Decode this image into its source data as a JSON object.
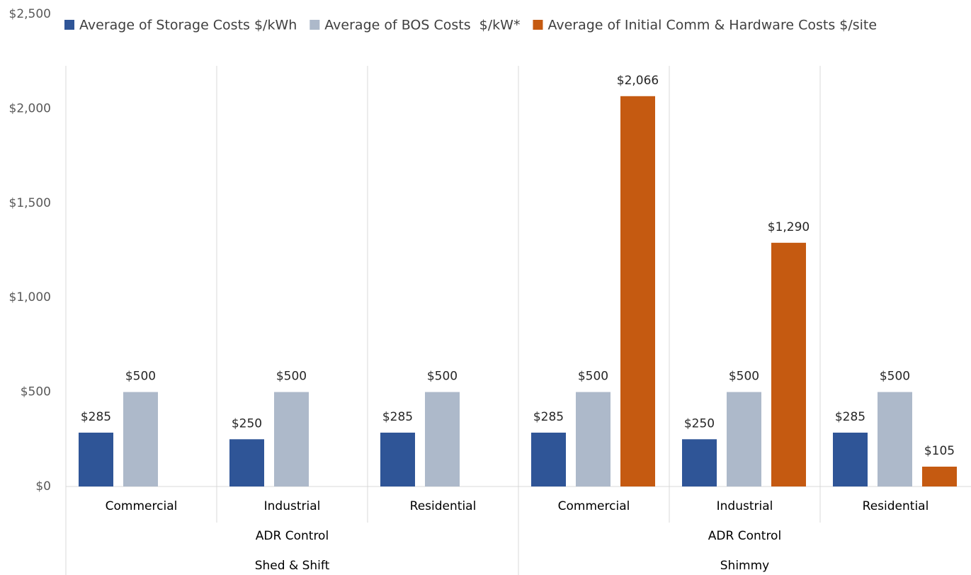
{
  "chart_data": {
    "type": "bar",
    "categories": [
      "Commercial",
      "Industrial",
      "Residential",
      "Commercial",
      "Industrial",
      "Residential"
    ],
    "subgroups": [
      "ADR Control",
      "ADR Control"
    ],
    "groups": [
      "Shed & Shift",
      "Shimmy"
    ],
    "series": [
      {
        "name": "Average of Storage Costs $/kWh",
        "color": "#2f5597",
        "values": [
          285,
          250,
          285,
          285,
          250,
          285
        ],
        "value_labels": [
          "$285",
          "$250",
          "$285",
          "$285",
          "$250",
          "$285"
        ]
      },
      {
        "name": "Average of BOS Costs  $/kW*",
        "color": "#adb9ca",
        "values": [
          500,
          500,
          500,
          500,
          500,
          500
        ],
        "value_labels": [
          "$500",
          "$500",
          "$500",
          "$500",
          "$500",
          "$500"
        ]
      },
      {
        "name": "Average of Initial Comm & Hardware Costs $/site",
        "color": "#c55a11",
        "values": [
          null,
          null,
          null,
          2066,
          1290,
          105
        ],
        "value_labels": [
          null,
          null,
          null,
          "$2,066",
          "$1,290",
          "$105"
        ]
      }
    ],
    "ylim": [
      0,
      2500
    ],
    "yticks": [
      {
        "value": 0,
        "label": "$0"
      },
      {
        "value": 500,
        "label": "$500"
      },
      {
        "value": 1000,
        "label": "$1,000"
      },
      {
        "value": 1500,
        "label": "$1,500"
      },
      {
        "value": 2000,
        "label": "$2,000"
      },
      {
        "value": 2500,
        "label": "$2,500"
      }
    ],
    "legend": "top"
  }
}
